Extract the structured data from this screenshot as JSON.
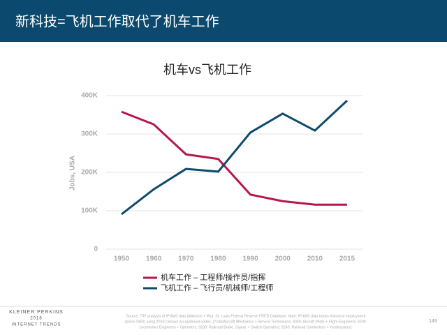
{
  "header": {
    "title": "新科技=飞机工作取代了机车工作"
  },
  "chart_data": {
    "type": "line",
    "title": "机车vs飞机工作",
    "y_label": "Jobs, USA",
    "categories": [
      "1950",
      "1960",
      "1970",
      "1980",
      "1990",
      "2000",
      "2010",
      "2015"
    ],
    "series": [
      {
        "name": "机车工作 – 工程师/操作员/指挥",
        "color": "#b5174b",
        "values": [
          358000,
          325000,
          247000,
          235000,
          142000,
          125000,
          116000,
          116000
        ]
      },
      {
        "name": "飞机工作 – 飞行员/机械师/工程师",
        "color": "#0d4a6b",
        "values": [
          91000,
          156000,
          209000,
          202000,
          304000,
          353000,
          309000,
          387000
        ]
      }
    ],
    "ylim": [
      0,
      400000
    ],
    "yticks": [
      {
        "value": 0,
        "label": "0"
      },
      {
        "value": 100000,
        "label": "100K"
      },
      {
        "value": 200000,
        "label": "200K"
      },
      {
        "value": 300000,
        "label": "300K"
      },
      {
        "value": 400000,
        "label": "400K"
      }
    ],
    "grid": true
  },
  "footer": {
    "brand": [
      "KLEINER PERKINS",
      "2018",
      "INTERNET TRENDS"
    ],
    "source": [
      "Source: ITIF analysis of IPUMS data (Atkinson + Wu); St. Louis Federal Reserve FRED Database. Note: IPUMS data tracks historical employment",
      "(since 1950) using 2010 Census occupational codes. (7140/Aircraft Mechanics + Service Technicians; 9030: Aircraft Pilots + Flight Engineers; 9200:",
      "Locomotive Engineers + Operators; 9230: Railroad Brake, Signal, + Switch Operators; 9240: Railroad Conductors + Yardmasters)."
    ],
    "page": "149"
  }
}
